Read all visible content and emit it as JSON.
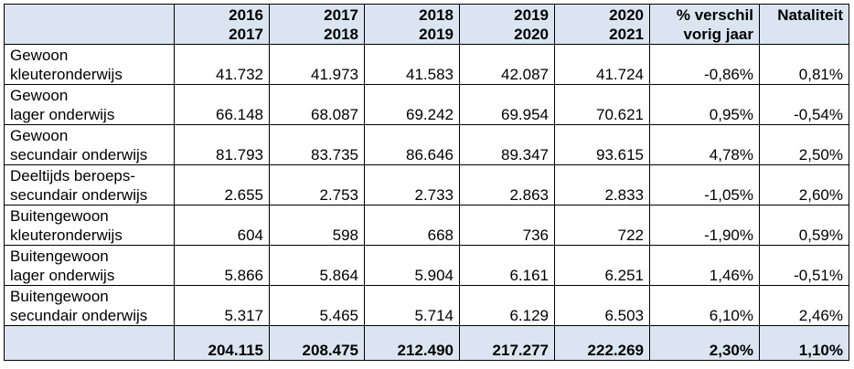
{
  "table": {
    "header": [
      {
        "line1": "",
        "line2": ""
      },
      {
        "line1": "2016",
        "line2": "2017"
      },
      {
        "line1": "2017",
        "line2": "2018"
      },
      {
        "line1": "2018",
        "line2": "2019"
      },
      {
        "line1": "2019",
        "line2": "2020"
      },
      {
        "line1": "2020",
        "line2": "2021"
      },
      {
        "line1": "% verschil",
        "line2": "vorig jaar"
      },
      {
        "line1": "",
        "line2": "Nataliteit"
      }
    ],
    "rows": [
      {
        "label1": "Gewoon",
        "label2": "kleuteronderwijs",
        "values": [
          "41.732",
          "41.973",
          "41.583",
          "42.087",
          "41.724",
          "-0,86%",
          "0,81%"
        ]
      },
      {
        "label1": "Gewoon",
        "label2": "lager onderwijs",
        "values": [
          "66.148",
          "68.087",
          "69.242",
          "69.954",
          "70.621",
          "0,95%",
          "-0,54%"
        ]
      },
      {
        "label1": "Gewoon",
        "label2": "secundair onderwijs",
        "values": [
          "81.793",
          "83.735",
          "86.646",
          "89.347",
          "93.615",
          "4,78%",
          "2,50%"
        ]
      },
      {
        "label1": "Deeltijds beroeps-",
        "label2": "secundair onderwijs",
        "values": [
          "2.655",
          "2.753",
          "2.733",
          "2.863",
          "2.833",
          "-1,05%",
          "2,60%"
        ]
      },
      {
        "label1": "Buitengewoon",
        "label2": "kleuteronderwijs",
        "values": [
          "604",
          "598",
          "668",
          "736",
          "722",
          "-1,90%",
          "0,59%"
        ]
      },
      {
        "label1": "Buitengewoon",
        "label2": "lager onderwijs",
        "values": [
          "5.866",
          "5.864",
          "5.904",
          "6.161",
          "6.251",
          "1,46%",
          "-0,51%"
        ]
      },
      {
        "label1": "Buitengewoon",
        "label2": "secundair onderwijs",
        "values": [
          "5.317",
          "5.465",
          "5.714",
          "6.129",
          "6.503",
          "6,10%",
          "2,46%"
        ]
      }
    ],
    "total": {
      "label": "",
      "values": [
        "204.115",
        "208.475",
        "212.490",
        "217.277",
        "222.269",
        "2,30%",
        "1,10%"
      ]
    }
  }
}
